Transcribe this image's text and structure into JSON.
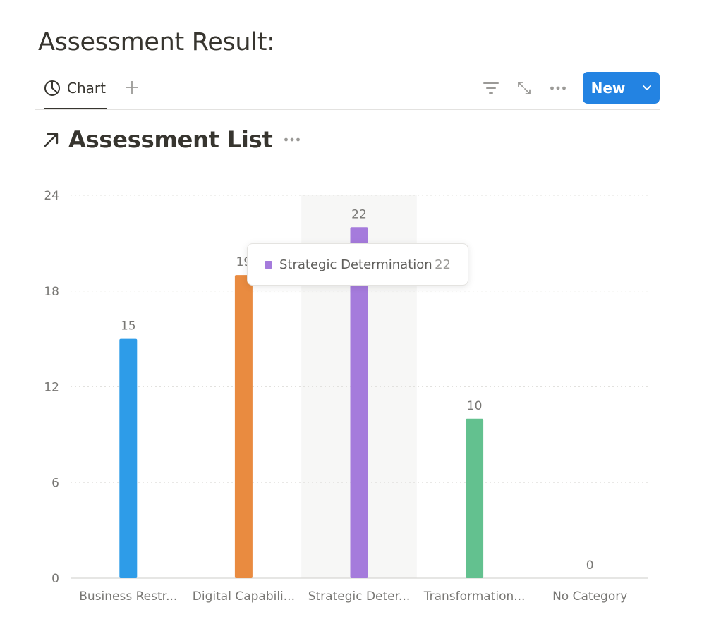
{
  "page": {
    "title": "Assessment Result:"
  },
  "toolbar": {
    "active_view_label": "Chart",
    "active_view_icon": "pie-chart-icon",
    "add_view_icon": "plus-icon",
    "filter_icon": "filter-icon",
    "expand_icon": "expand-icon",
    "more_icon": "more-icon",
    "new_button_label": "New",
    "new_dropdown_icon": "chevron-down-icon",
    "accent_color": "#2383e2"
  },
  "database": {
    "title": "Assessment List",
    "link_icon": "arrow-up-right-icon",
    "more_icon": "more-icon"
  },
  "chart_data": {
    "type": "bar",
    "categories": [
      "Business Restr...",
      "Digital Capabili...",
      "Strategic Deter...",
      "Transformation...",
      "No Category"
    ],
    "values": [
      15,
      19,
      22,
      10,
      0
    ],
    "data_labels": [
      "15",
      "19",
      "22",
      "10",
      "0"
    ],
    "colors": [
      "#2e9ce8",
      "#e98b40",
      "#a57bdc",
      "#63c18f",
      "#9b9a97"
    ],
    "yticks": [
      0,
      6,
      12,
      18,
      24
    ],
    "ylim": [
      0,
      24
    ],
    "grid": true,
    "highlighted_index": 2,
    "title": "",
    "xlabel": "",
    "ylabel": ""
  },
  "tooltip": {
    "label": "Strategic Determination",
    "value": "22",
    "color": "#a57bdc"
  }
}
